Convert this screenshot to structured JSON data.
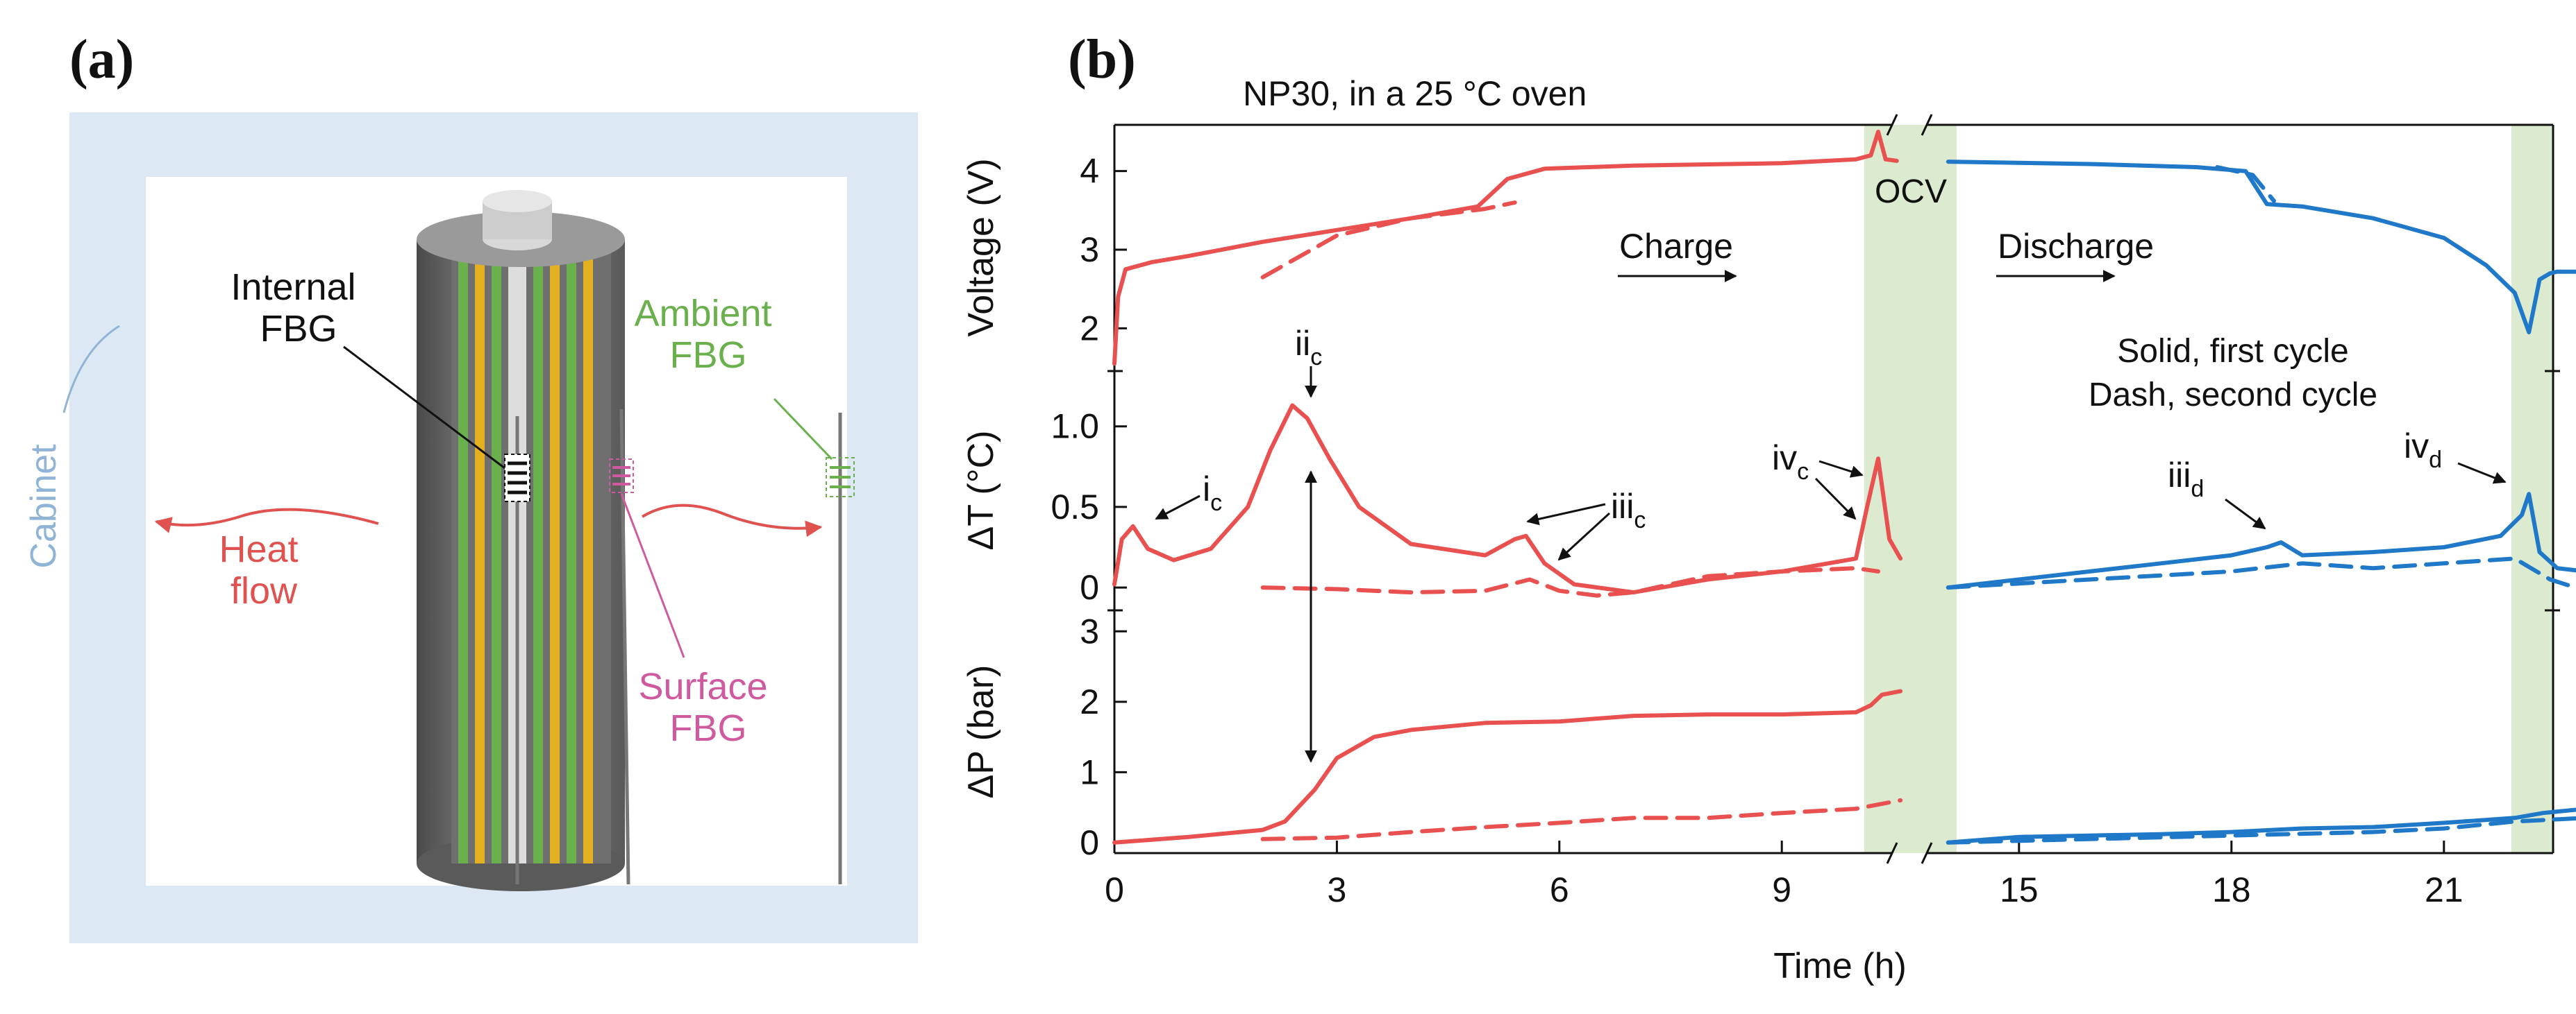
{
  "panel_a": {
    "label": "(a)",
    "cabinet_label": "Cabinet",
    "internal_fbg": [
      "Internal",
      "FBG"
    ],
    "ambient_fbg": [
      "Ambient",
      "FBG"
    ],
    "surface_fbg": [
      "Surface",
      "FBG"
    ],
    "heat_flow": [
      "Heat",
      "flow"
    ],
    "colors": {
      "cabinet": "#dce9f5",
      "heat": "#e0524f",
      "ambient": "#6ab04c",
      "surface": "#d05aa0",
      "cabinet_text": "#8fb4d6"
    }
  },
  "panel_b": {
    "label": "(b)",
    "title": "NP30, in a 25 °C oven",
    "ocv_label": "OCV",
    "charge_label": "Charge",
    "discharge_label": "Discharge",
    "legend_line1": "Solid, first cycle",
    "legend_line2": "Dash, second cycle",
    "annotations": {
      "i": {
        "base": "i",
        "sub": "c"
      },
      "ii": {
        "base": "ii",
        "sub": "c"
      },
      "iii_c": {
        "base": "iii",
        "sub": "c"
      },
      "iv_c": {
        "base": "iv",
        "sub": "c"
      },
      "iii_d": {
        "base": "iii",
        "sub": "d"
      },
      "iv_d": {
        "base": "iv",
        "sub": "d"
      }
    },
    "colors": {
      "charge": "#e8514f",
      "discharge": "#1f78c8",
      "band": "#dcebd0"
    }
  },
  "chart_data": {
    "type": "line",
    "title": "NP30, in a 25 °C oven",
    "xlabel": "Time (h)",
    "x_ticks": [
      "0",
      "3",
      "6",
      "9",
      "15",
      "18",
      "21"
    ],
    "x_tick_values": [
      0,
      3,
      6,
      9,
      15,
      18,
      21
    ],
    "x_break": [
      11,
      13
    ],
    "ocv_band_h": [
      10.3,
      14.0
    ],
    "end_band_h": [
      22.2,
      23
    ],
    "subplots": [
      {
        "ylabel": "Voltage (V)",
        "ylim": [
          1.5,
          4.5
        ],
        "y_ticks": [
          2,
          3,
          4
        ],
        "series": [
          {
            "name": "charge, first cycle",
            "style": "solid",
            "color": "#e8514f",
            "x": [
              0,
              0.05,
              0.15,
              0.5,
              1,
              2,
              3,
              4,
              4.9,
              5.3,
              5.8,
              7,
              9,
              10.0,
              10.2,
              10.3,
              10.4,
              10.55
            ],
            "y": [
              1.55,
              2.4,
              2.75,
              2.84,
              2.92,
              3.1,
              3.25,
              3.4,
              3.55,
              3.9,
              4.03,
              4.07,
              4.1,
              4.15,
              4.2,
              4.5,
              4.15,
              4.13
            ]
          },
          {
            "name": "charge, second cycle",
            "style": "dash",
            "color": "#e8514f",
            "x": [
              2.0,
              3,
              4,
              5,
              5.4
            ],
            "y": [
              2.65,
              3.18,
              3.4,
              3.52,
              3.6
            ]
          },
          {
            "name": "discharge, first cycle",
            "style": "solid",
            "color": "#1f78c8",
            "x": [
              14.0,
              16,
              17.5,
              18.2,
              18.5,
              19,
              20,
              21,
              21.6,
              22.0,
              22.2,
              22.35,
              22.5,
              22.6,
              23
            ],
            "y": [
              4.12,
              4.09,
              4.05,
              4.0,
              3.58,
              3.55,
              3.4,
              3.15,
              2.8,
              2.45,
              1.95,
              2.62,
              2.7,
              2.72,
              2.72
            ]
          },
          {
            "name": "discharge, second cycle",
            "style": "dash",
            "color": "#1f78c8",
            "x": [
              17.8,
              18.3,
              18.6
            ],
            "y": [
              4.05,
              3.95,
              3.62
            ]
          }
        ]
      },
      {
        "ylabel": "ΔT (°C)",
        "ylim": [
          -0.12,
          1.3
        ],
        "y_ticks": [
          0,
          0.5,
          1.0
        ],
        "series": [
          {
            "name": "charge, first cycle",
            "style": "solid",
            "color": "#e8514f",
            "x": [
              0,
              0.1,
              0.25,
              0.45,
              0.8,
              1.3,
              1.8,
              2.1,
              2.4,
              2.6,
              2.9,
              3.3,
              4,
              5,
              5.4,
              5.55,
              5.8,
              6.2,
              7,
              8,
              9,
              10,
              10.15,
              10.3,
              10.45,
              10.6
            ],
            "y": [
              0.02,
              0.3,
              0.38,
              0.24,
              0.17,
              0.24,
              0.5,
              0.85,
              1.13,
              1.05,
              0.8,
              0.5,
              0.27,
              0.2,
              0.3,
              0.32,
              0.15,
              0.02,
              -0.03,
              0.05,
              0.1,
              0.18,
              0.5,
              0.8,
              0.3,
              0.18
            ]
          },
          {
            "name": "charge, second cycle",
            "style": "dash",
            "color": "#e8514f",
            "x": [
              2.0,
              3,
              4,
              5,
              5.6,
              6.0,
              6.5,
              7,
              8,
              9,
              10,
              10.3
            ],
            "y": [
              0.0,
              -0.01,
              -0.03,
              -0.02,
              0.05,
              -0.02,
              -0.05,
              -0.03,
              0.07,
              0.1,
              0.12,
              0.1
            ]
          },
          {
            "name": "discharge, first cycle",
            "style": "solid",
            "color": "#1f78c8",
            "x": [
              14,
              15,
              16,
              17,
              18,
              18.5,
              18.7,
              19,
              20,
              21,
              21.8,
              22.1,
              22.2,
              22.35,
              22.6,
              23
            ],
            "y": [
              0.0,
              0.05,
              0.1,
              0.15,
              0.2,
              0.25,
              0.28,
              0.2,
              0.22,
              0.25,
              0.32,
              0.45,
              0.58,
              0.22,
              0.12,
              0.1
            ]
          },
          {
            "name": "discharge, second cycle",
            "style": "dash",
            "color": "#1f78c8",
            "x": [
              14,
              16,
              18,
              19,
              20,
              21,
              22,
              22.5,
              23
            ],
            "y": [
              0.0,
              0.05,
              0.1,
              0.15,
              0.12,
              0.15,
              0.18,
              0.05,
              -0.02
            ]
          }
        ]
      },
      {
        "ylabel": "ΔP (bar)",
        "ylim": [
          -0.1,
          3.2
        ],
        "y_ticks": [
          0,
          1,
          2,
          3
        ],
        "series": [
          {
            "name": "charge, first cycle",
            "style": "solid",
            "color": "#e8514f",
            "x": [
              0,
              1,
              2,
              2.3,
              2.7,
              3,
              3.5,
              4,
              5,
              6,
              7,
              8,
              9,
              10,
              10.2,
              10.35,
              10.6
            ],
            "y": [
              0.0,
              0.08,
              0.18,
              0.3,
              0.75,
              1.2,
              1.5,
              1.6,
              1.7,
              1.72,
              1.8,
              1.82,
              1.82,
              1.85,
              1.95,
              2.1,
              2.15
            ]
          },
          {
            "name": "charge, second cycle",
            "style": "dash",
            "color": "#e8514f",
            "x": [
              2.0,
              3,
              4,
              5,
              6,
              7,
              8,
              9,
              10,
              10.6
            ],
            "y": [
              0.05,
              0.07,
              0.15,
              0.22,
              0.28,
              0.35,
              0.35,
              0.42,
              0.48,
              0.6
            ]
          },
          {
            "name": "discharge, first cycle",
            "style": "solid",
            "color": "#1f78c8",
            "x": [
              14,
              15,
              16,
              17,
              18,
              19,
              20,
              21,
              22,
              22.4,
              23
            ],
            "y": [
              0.0,
              0.08,
              0.1,
              0.12,
              0.15,
              0.2,
              0.22,
              0.28,
              0.35,
              0.42,
              0.48
            ]
          },
          {
            "name": "discharge, second cycle",
            "style": "dash",
            "color": "#1f78c8",
            "x": [
              14,
              16,
              18,
              20,
              21,
              22,
              23
            ],
            "y": [
              0.0,
              0.05,
              0.1,
              0.15,
              0.2,
              0.3,
              0.35
            ]
          }
        ]
      }
    ]
  }
}
